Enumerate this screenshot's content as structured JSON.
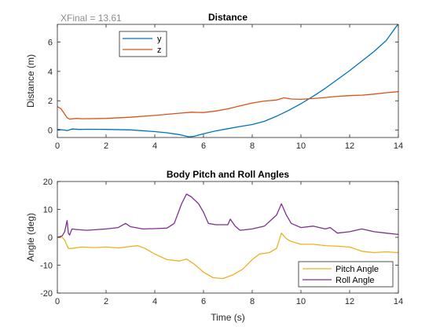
{
  "chart_data": [
    {
      "type": "line",
      "title": "Distance",
      "xlabel": "",
      "ylabel": "Distance (m)",
      "xlim": [
        0,
        14
      ],
      "ylim": [
        -0.5,
        7.2
      ],
      "xticks": [
        0,
        2,
        4,
        6,
        8,
        10,
        12,
        14
      ],
      "yticks": [
        0,
        2,
        4,
        6
      ],
      "annotation": "XFinal = 13.61",
      "grid": false,
      "legend": "upper-left",
      "series": [
        {
          "name": "y",
          "color": "#0072BD",
          "points": [
            [
              0,
              0.05
            ],
            [
              0.3,
              0.0
            ],
            [
              0.4,
              -0.03
            ],
            [
              0.6,
              0.08
            ],
            [
              0.9,
              0.05
            ],
            [
              1.3,
              0.06
            ],
            [
              2,
              0.05
            ],
            [
              3,
              0.02
            ],
            [
              4,
              -0.1
            ],
            [
              4.5,
              -0.18
            ],
            [
              5,
              -0.3
            ],
            [
              5.4,
              -0.45
            ],
            [
              5.6,
              -0.42
            ],
            [
              6,
              -0.25
            ],
            [
              6.5,
              -0.05
            ],
            [
              7,
              0.1
            ],
            [
              7.5,
              0.25
            ],
            [
              8,
              0.38
            ],
            [
              8.5,
              0.6
            ],
            [
              9,
              0.95
            ],
            [
              9.5,
              1.35
            ],
            [
              10,
              1.8
            ],
            [
              10.5,
              2.3
            ],
            [
              11,
              2.85
            ],
            [
              11.5,
              3.45
            ],
            [
              12,
              4.05
            ],
            [
              12.5,
              4.7
            ],
            [
              13,
              5.35
            ],
            [
              13.5,
              6.1
            ],
            [
              14,
              7.25
            ]
          ]
        },
        {
          "name": "z",
          "color": "#D95319",
          "points": [
            [
              0,
              1.6
            ],
            [
              0.15,
              1.45
            ],
            [
              0.3,
              1.1
            ],
            [
              0.4,
              0.85
            ],
            [
              0.5,
              0.75
            ],
            [
              0.8,
              0.8
            ],
            [
              1,
              0.78
            ],
            [
              2,
              0.8
            ],
            [
              3,
              0.88
            ],
            [
              4,
              1.0
            ],
            [
              5,
              1.15
            ],
            [
              5.5,
              1.22
            ],
            [
              6,
              1.2
            ],
            [
              6.5,
              1.3
            ],
            [
              7,
              1.45
            ],
            [
              7.5,
              1.65
            ],
            [
              8,
              1.85
            ],
            [
              8.5,
              1.98
            ],
            [
              9,
              2.05
            ],
            [
              9.3,
              2.2
            ],
            [
              9.6,
              2.12
            ],
            [
              10,
              2.1
            ],
            [
              10.5,
              2.15
            ],
            [
              11,
              2.22
            ],
            [
              11.5,
              2.3
            ],
            [
              12,
              2.35
            ],
            [
              12.5,
              2.38
            ],
            [
              13,
              2.45
            ],
            [
              13.5,
              2.55
            ],
            [
              14,
              2.62
            ]
          ]
        }
      ]
    },
    {
      "type": "line",
      "title": "Body Pitch and Roll Angles",
      "xlabel": "Time (s)",
      "ylabel": "Angle (deg)",
      "xlim": [
        0,
        14
      ],
      "ylim": [
        -20,
        20
      ],
      "xticks": [
        0,
        2,
        4,
        6,
        8,
        10,
        12,
        14
      ],
      "yticks": [
        -20,
        -10,
        0,
        10,
        20
      ],
      "grid": false,
      "legend": "lower-right",
      "series": [
        {
          "name": "Pitch Angle",
          "color": "#EDB120",
          "points": [
            [
              0,
              0
            ],
            [
              0.2,
              0
            ],
            [
              0.3,
              -1
            ],
            [
              0.45,
              -4
            ],
            [
              0.6,
              -4
            ],
            [
              1,
              -3.5
            ],
            [
              1.5,
              -3.7
            ],
            [
              2,
              -3.5
            ],
            [
              2.5,
              -3.8
            ],
            [
              3,
              -3.3
            ],
            [
              3.3,
              -3
            ],
            [
              3.6,
              -4
            ],
            [
              4,
              -6
            ],
            [
              4.5,
              -8
            ],
            [
              5,
              -8.5
            ],
            [
              5.3,
              -7.8
            ],
            [
              5.6,
              -9.5
            ],
            [
              6,
              -12.5
            ],
            [
              6.4,
              -14.5
            ],
            [
              6.8,
              -14.8
            ],
            [
              7.2,
              -13.5
            ],
            [
              7.6,
              -11.5
            ],
            [
              8,
              -8
            ],
            [
              8.3,
              -6
            ],
            [
              8.7,
              -5.5
            ],
            [
              9,
              -4
            ],
            [
              9.2,
              1.5
            ],
            [
              9.4,
              -0.5
            ],
            [
              9.6,
              -1.5
            ],
            [
              10,
              -2.5
            ],
            [
              10.5,
              -2.5
            ],
            [
              11,
              -3
            ],
            [
              11.5,
              -3.2
            ],
            [
              12,
              -3.5
            ],
            [
              12.5,
              -5
            ],
            [
              13,
              -5.5
            ],
            [
              13.5,
              -5.2
            ],
            [
              14,
              -5.5
            ]
          ]
        },
        {
          "name": "Roll Angle",
          "color": "#7E2F8E",
          "points": [
            [
              0,
              0
            ],
            [
              0.2,
              0.5
            ],
            [
              0.3,
              2
            ],
            [
              0.4,
              6
            ],
            [
              0.45,
              1.5
            ],
            [
              0.5,
              0.8
            ],
            [
              0.6,
              3
            ],
            [
              0.8,
              2.8
            ],
            [
              1.2,
              2.5
            ],
            [
              2,
              3
            ],
            [
              2.5,
              3.5
            ],
            [
              2.8,
              5
            ],
            [
              3,
              3.8
            ],
            [
              3.5,
              3
            ],
            [
              4,
              3.1
            ],
            [
              4.5,
              3.3
            ],
            [
              4.8,
              5
            ],
            [
              5.1,
              12
            ],
            [
              5.3,
              15.5
            ],
            [
              5.5,
              14.5
            ],
            [
              5.8,
              12
            ],
            [
              6,
              9
            ],
            [
              6.2,
              5
            ],
            [
              6.5,
              4.5
            ],
            [
              7,
              4.5
            ],
            [
              7.1,
              6.5
            ],
            [
              7.3,
              4
            ],
            [
              7.5,
              2.5
            ],
            [
              8,
              3
            ],
            [
              8.5,
              4
            ],
            [
              9,
              8
            ],
            [
              9.2,
              12
            ],
            [
              9.4,
              8
            ],
            [
              9.6,
              5
            ],
            [
              10,
              3.5
            ],
            [
              10.5,
              4
            ],
            [
              11,
              3
            ],
            [
              11.2,
              3.5
            ],
            [
              11.5,
              1.5
            ],
            [
              12,
              2
            ],
            [
              12.5,
              3
            ],
            [
              13,
              2
            ],
            [
              13.5,
              1.5
            ],
            [
              14,
              1
            ]
          ]
        }
      ]
    }
  ]
}
